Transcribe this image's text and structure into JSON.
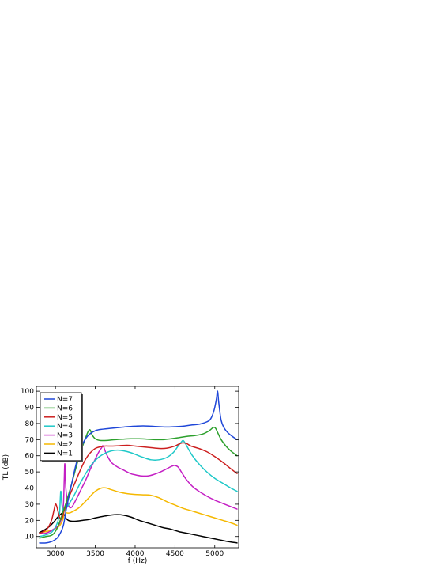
{
  "chart_data": {
    "type": "line",
    "xlabel": "f (Hz)",
    "ylabel": "TL (dB)",
    "xlim": [
      2760,
      5300
    ],
    "ylim": [
      3,
      103
    ],
    "xticks": [
      3000,
      3500,
      4000,
      4500,
      5000
    ],
    "yticks": [
      10,
      20,
      30,
      40,
      50,
      60,
      70,
      80,
      90,
      100
    ],
    "grid": false,
    "legend_position": "top-left",
    "series": [
      {
        "name": "N=7",
        "color": "#1f47d8",
        "x": [
          2800,
          2880,
          2960,
          3020,
          3060,
          3100,
          3140,
          3200,
          3260,
          3320,
          3400,
          3500,
          3600,
          3700,
          3800,
          3900,
          4000,
          4100,
          4200,
          4300,
          4400,
          4500,
          4600,
          4700,
          4800,
          4900,
          4950,
          4990,
          5020,
          5035,
          5050,
          5080,
          5120,
          5170,
          5220,
          5280
        ],
        "y": [
          6,
          6,
          7,
          9,
          12,
          17,
          28,
          42,
          55,
          65,
          72,
          75.5,
          76.5,
          77,
          77.5,
          78,
          78.3,
          78.5,
          78.3,
          78,
          77.8,
          78,
          78.3,
          79,
          79.5,
          81,
          83,
          88,
          95,
          100,
          93,
          82,
          77,
          74,
          72,
          70
        ]
      },
      {
        "name": "N=6",
        "color": "#2ca02c",
        "x": [
          2800,
          2880,
          2960,
          3020,
          3080,
          3140,
          3200,
          3260,
          3320,
          3370,
          3410,
          3435,
          3460,
          3500,
          3560,
          3650,
          3750,
          3850,
          3950,
          4050,
          4150,
          4250,
          4350,
          4450,
          4550,
          4650,
          4750,
          4850,
          4930,
          4980,
          5010,
          5040,
          5080,
          5140,
          5200,
          5280
        ],
        "y": [
          9,
          10,
          11,
          15,
          23,
          32,
          42,
          53,
          63,
          70,
          75,
          76,
          73,
          70.5,
          69.5,
          69.5,
          70,
          70.3,
          70.5,
          70.5,
          70.3,
          70,
          70,
          70.5,
          71.2,
          72,
          72.5,
          73.5,
          75.5,
          77.5,
          77,
          74,
          70,
          66,
          63,
          60
        ]
      },
      {
        "name": "N=5",
        "color": "#cc1f1f",
        "x": [
          2800,
          2850,
          2900,
          2950,
          2980,
          3000,
          3020,
          3050,
          3080,
          3110,
          3150,
          3200,
          3260,
          3320,
          3380,
          3440,
          3500,
          3560,
          3620,
          3700,
          3800,
          3900,
          4000,
          4100,
          4200,
          4300,
          4400,
          4500,
          4560,
          4600,
          4650,
          4700,
          4800,
          4900,
          5000,
          5100,
          5200,
          5280
        ],
        "y": [
          12,
          13,
          15,
          20,
          26,
          30,
          28,
          22,
          21,
          26,
          32,
          38,
          45,
          52,
          58,
          62,
          64.5,
          65.5,
          66,
          66,
          66.2,
          66.5,
          66,
          65.5,
          65,
          64.5,
          64.7,
          66,
          67.5,
          68,
          67.5,
          66,
          64.5,
          62.5,
          59.5,
          56,
          52,
          49
        ]
      },
      {
        "name": "N=4",
        "color": "#1ec8c8",
        "x": [
          2800,
          2880,
          2960,
          3020,
          3050,
          3060,
          3068,
          3080,
          3100,
          3130,
          3180,
          3240,
          3300,
          3380,
          3460,
          3540,
          3620,
          3700,
          3780,
          3860,
          3940,
          4020,
          4100,
          4200,
          4300,
          4400,
          4480,
          4540,
          4580,
          4600,
          4620,
          4660,
          4720,
          4800,
          4900,
          5000,
          5100,
          5200,
          5280
        ],
        "y": [
          10,
          11,
          13,
          18,
          24,
          33,
          38,
          30,
          26,
          27,
          31,
          36,
          42,
          49,
          55,
          59,
          61.5,
          63,
          63.5,
          63,
          62,
          60.5,
          59,
          57.5,
          57.5,
          59,
          62,
          66,
          68.5,
          69.5,
          68.5,
          65,
          60,
          55,
          50,
          46,
          43,
          40,
          38
        ]
      },
      {
        "name": "N=3",
        "color": "#c41fc4",
        "x": [
          2800,
          2880,
          2960,
          3040,
          3080,
          3100,
          3110,
          3118,
          3130,
          3160,
          3200,
          3260,
          3320,
          3380,
          3440,
          3500,
          3540,
          3580,
          3600,
          3640,
          3700,
          3780,
          3860,
          3940,
          4000,
          4080,
          4160,
          4240,
          4320,
          4400,
          4460,
          4500,
          4540,
          4580,
          4640,
          4720,
          4800,
          4900,
          5000,
          5100,
          5200,
          5280
        ],
        "y": [
          12,
          12,
          14,
          17,
          22,
          30,
          45,
          55,
          40,
          30,
          28,
          33,
          39,
          45,
          52,
          58,
          62,
          65,
          66,
          61,
          56,
          53,
          51,
          49,
          48.2,
          47.5,
          47.5,
          48.5,
          50,
          52,
          53.5,
          54,
          53,
          50,
          45.5,
          41,
          38,
          35,
          32.5,
          30.5,
          28.5,
          27
        ]
      },
      {
        "name": "N=2",
        "color": "#f5b800",
        "x": [
          2800,
          2880,
          2960,
          3040,
          3080,
          3100,
          3110,
          3130,
          3160,
          3200,
          3300,
          3400,
          3500,
          3580,
          3640,
          3700,
          3800,
          3900,
          4000,
          4100,
          4200,
          4300,
          4400,
          4500,
          4600,
          4700,
          4800,
          4900,
          5000,
          5100,
          5200,
          5280
        ],
        "y": [
          12,
          13,
          14,
          16,
          19,
          22,
          28,
          25,
          24.5,
          25,
          28,
          33,
          38,
          40,
          40,
          39,
          37.5,
          36.5,
          36,
          35.8,
          35.5,
          34,
          31.5,
          29.5,
          27.5,
          26,
          24.5,
          23,
          21.5,
          20,
          18.5,
          17
        ]
      },
      {
        "name": "N=1",
        "color": "#000000",
        "x": [
          2800,
          2860,
          2920,
          2980,
          3020,
          3060,
          3090,
          3110,
          3130,
          3160,
          3200,
          3260,
          3340,
          3420,
          3500,
          3600,
          3700,
          3780,
          3850,
          3950,
          4050,
          4150,
          4250,
          4350,
          4450,
          4550,
          4650,
          4750,
          4850,
          4950,
          5050,
          5150,
          5280
        ],
        "y": [
          12.5,
          14,
          16,
          19,
          21.5,
          23.5,
          24.5,
          23.5,
          21.5,
          20,
          19.5,
          19.5,
          20,
          20.5,
          21.5,
          22.5,
          23.3,
          23.5,
          23.2,
          22,
          20,
          18.5,
          17,
          15.5,
          14.5,
          13,
          12,
          11,
          10,
          9,
          8,
          7,
          6
        ]
      }
    ]
  }
}
